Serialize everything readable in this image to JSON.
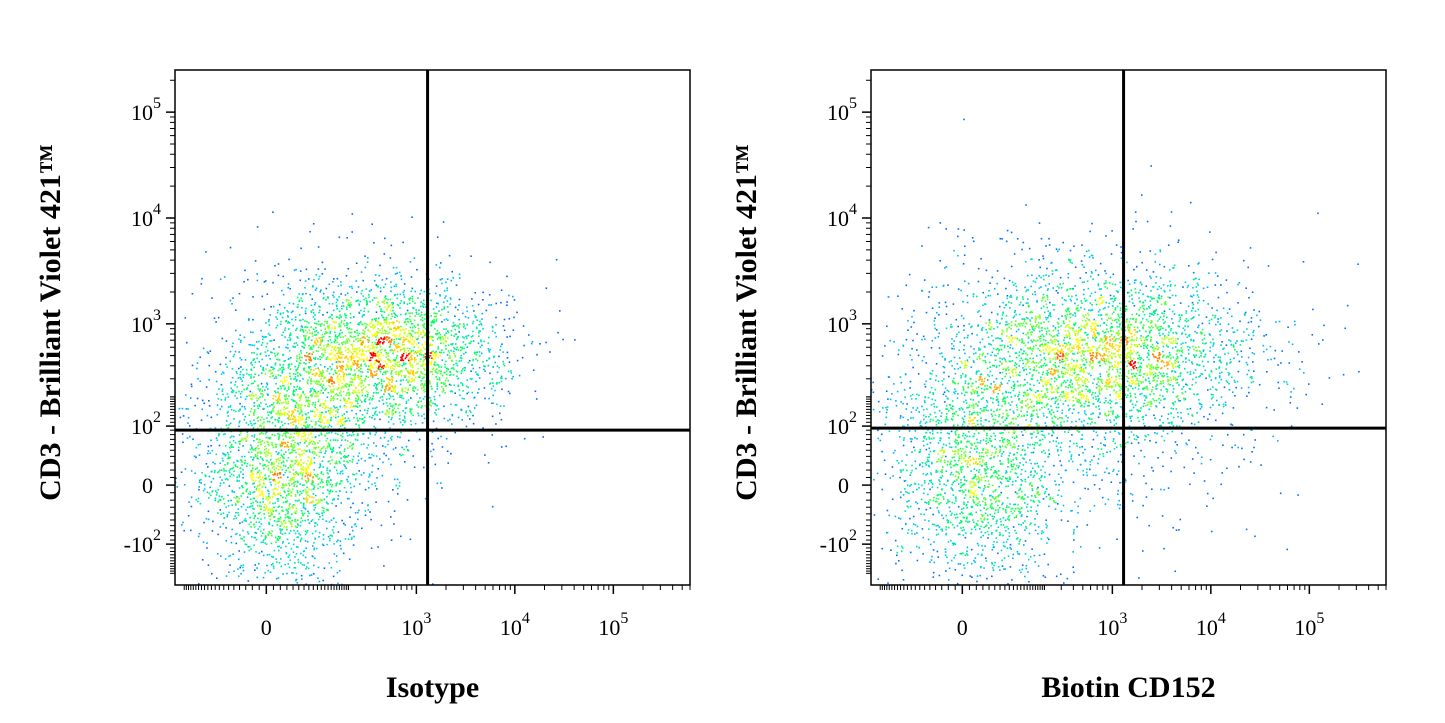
{
  "chart_data": [
    {
      "type": "scatter",
      "subtype": "flow-cytometry-density-dot-plot",
      "xlabel": "Isotype",
      "ylabel": "CD3 - Brilliant Violet 421™",
      "x_scale": "biexponential",
      "y_scale": "biexponential",
      "x_ticks": [
        {
          "value": 0,
          "base": "0",
          "exp": ""
        },
        {
          "value": 1000,
          "base": "10",
          "exp": "3"
        },
        {
          "value": 10000,
          "base": "10",
          "exp": "4"
        },
        {
          "value": 100000,
          "base": "10",
          "exp": "5"
        }
      ],
      "y_ticks": [
        {
          "value": -100,
          "base": "-10",
          "exp": "2"
        },
        {
          "value": 0,
          "base": "0",
          "exp": ""
        },
        {
          "value": 100,
          "base": "10",
          "exp": "2"
        },
        {
          "value": 1000,
          "base": "10",
          "exp": "3"
        },
        {
          "value": 10000,
          "base": "10",
          "exp": "4"
        },
        {
          "value": 100000,
          "base": "10",
          "exp": "5"
        }
      ],
      "quadrant_gate": {
        "x": 1300,
        "y": 90
      },
      "populations": [
        {
          "x_center": 20,
          "y_center": 15,
          "x_spread": 0.22,
          "y_spread": 0.3,
          "weight": 0.35
        },
        {
          "x_center": 120,
          "y_center": 260,
          "x_spread": 0.35,
          "y_spread": 0.3,
          "weight": 0.3
        },
        {
          "x_center": 650,
          "y_center": 550,
          "x_spread": 0.3,
          "y_spread": 0.18,
          "weight": 0.35
        }
      ],
      "grid": false,
      "legend": "none"
    },
    {
      "type": "scatter",
      "subtype": "flow-cytometry-density-dot-plot",
      "xlabel": "Biotin CD152",
      "ylabel": "CD3 - Brilliant Violet 421™",
      "x_scale": "biexponential",
      "y_scale": "biexponential",
      "x_ticks": [
        {
          "value": 0,
          "base": "0",
          "exp": ""
        },
        {
          "value": 1000,
          "base": "10",
          "exp": "3"
        },
        {
          "value": 10000,
          "base": "10",
          "exp": "4"
        },
        {
          "value": 100000,
          "base": "10",
          "exp": "5"
        }
      ],
      "y_ticks": [
        {
          "value": -100,
          "base": "-10",
          "exp": "2"
        },
        {
          "value": 0,
          "base": "0",
          "exp": ""
        },
        {
          "value": 100,
          "base": "10",
          "exp": "2"
        },
        {
          "value": 1000,
          "base": "10",
          "exp": "3"
        },
        {
          "value": 10000,
          "base": "10",
          "exp": "4"
        },
        {
          "value": 100000,
          "base": "10",
          "exp": "5"
        }
      ],
      "quadrant_gate": {
        "x": 1300,
        "y": 95
      },
      "populations": [
        {
          "x_center": 20,
          "y_center": 15,
          "x_spread": 0.25,
          "y_spread": 0.3,
          "weight": 0.3
        },
        {
          "x_center": 350,
          "y_center": 300,
          "x_spread": 0.5,
          "y_spread": 0.35,
          "weight": 0.3
        },
        {
          "x_center": 1000,
          "y_center": 550,
          "x_spread": 0.4,
          "y_spread": 0.2,
          "weight": 0.4
        }
      ],
      "grid": false,
      "legend": "none"
    }
  ],
  "colors": {
    "axis": "#000000",
    "density_low": "#0000ff",
    "density_mid_low": "#00c8ff",
    "density_mid": "#00ff60",
    "density_mid_high": "#ffff00",
    "density_high": "#ff0000"
  }
}
